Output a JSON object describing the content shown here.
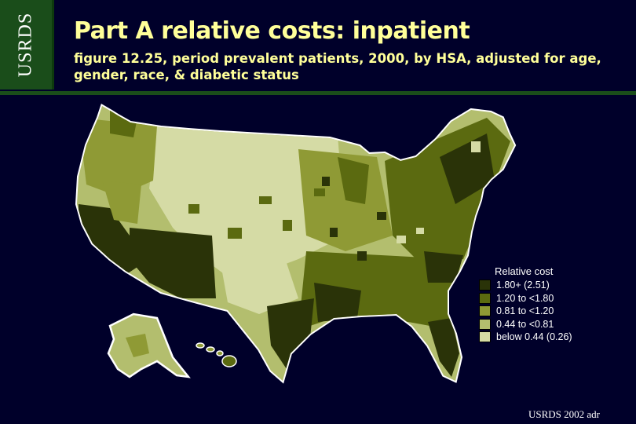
{
  "header": {
    "logo_text": "USRDS",
    "title": "Part A relative costs: inpatient",
    "subtitle": "figure 12.25, period prevalent patients, 2000, by HSA, adjusted for age, gender, race, & diabetic status"
  },
  "legend": {
    "title": "Relative cost",
    "items": [
      {
        "label": "1.80+ (2.51)",
        "color": "#2a3308"
      },
      {
        "label": "1.20 to <1.80",
        "color": "#5b6a10"
      },
      {
        "label": "0.81 to <1.20",
        "color": "#8f9a35"
      },
      {
        "label": "0.44 to <0.81",
        "color": "#b3be6e"
      },
      {
        "label": "below 0.44 (0.26)",
        "color": "#d5dba5"
      }
    ]
  },
  "footer": "USRDS 2002 adr"
}
